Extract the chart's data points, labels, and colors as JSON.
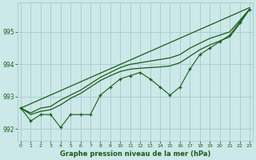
{
  "title": "Graphe pression niveau de la mer (hPa)",
  "bg_color": "#cce8e8",
  "grid_color": "#aacfcf",
  "line_color": "#1a5c1a",
  "xlim": [
    -0.3,
    23.3
  ],
  "ylim": [
    991.65,
    995.9
  ],
  "yticks": [
    992,
    993,
    994,
    995
  ],
  "xticks": [
    0,
    1,
    2,
    3,
    4,
    5,
    6,
    7,
    8,
    9,
    10,
    11,
    12,
    13,
    14,
    15,
    16,
    17,
    18,
    19,
    20,
    21,
    22,
    23
  ],
  "marker_series": [
    992.65,
    992.25,
    992.45,
    992.45,
    992.05,
    992.45,
    992.45,
    992.45,
    993.05,
    993.3,
    993.55,
    993.65,
    993.75,
    993.55,
    993.3,
    993.05,
    993.3,
    993.85,
    994.3,
    994.5,
    994.7,
    994.9,
    995.3,
    995.7
  ],
  "smooth_line1": [
    992.65,
    992.5,
    992.65,
    992.7,
    992.9,
    993.05,
    993.2,
    993.4,
    993.6,
    993.75,
    993.9,
    994.0,
    994.05,
    994.1,
    994.15,
    994.2,
    994.3,
    994.5,
    994.65,
    994.8,
    994.9,
    995.0,
    995.35,
    995.7
  ],
  "smooth_line2": [
    992.65,
    992.45,
    992.55,
    992.6,
    992.75,
    992.95,
    993.1,
    993.3,
    993.5,
    993.65,
    993.78,
    993.85,
    993.88,
    993.9,
    993.92,
    993.95,
    994.05,
    994.25,
    994.45,
    994.6,
    994.72,
    994.85,
    995.25,
    995.7
  ],
  "trend_line": [
    992.65,
    995.75
  ]
}
